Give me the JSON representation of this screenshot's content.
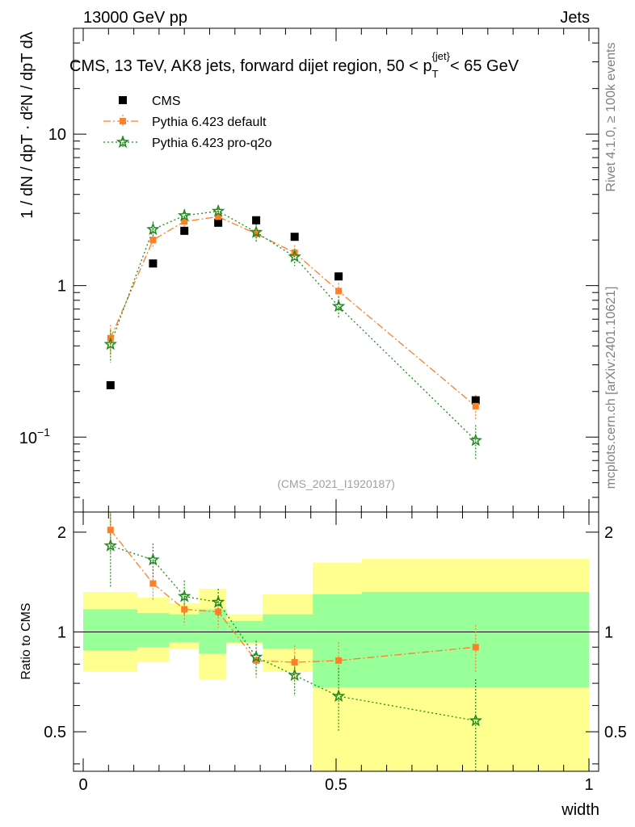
{
  "header": {
    "left": "13000 GeV pp",
    "right": "Jets"
  },
  "side_labels": {
    "rivet": "Rivet 4.1.0, ≥ 100k events",
    "mcplots": "mcplots.cern.ch [arXiv:2401.10621]"
  },
  "colors": {
    "cms": "#000000",
    "default": "#ff7f27",
    "proq2o": "#1a8c1a",
    "band_outer": "#ffff90",
    "band_inner": "#99ff99"
  },
  "chart_data": {
    "type": "scatter",
    "title_main": "CMS, 13 TeV, AK8 jets, forward dijet region, 50 <",
    "title_pt": "p",
    "title_pt_sub": "T",
    "title_pt_sup": "{jet}",
    "title_end": "< 65 GeV",
    "watermark": "(CMS_2021_I1920187)",
    "xlabel": "width",
    "ylabel_top": "1 / dN / dpT · d²N / dpT dλ",
    "ylabel_bottom": "Ratio to CMS",
    "xlim": [
      0,
      1
    ],
    "ylim_main": [
      0.032,
      50
    ],
    "ylim_ratio": [
      0.38,
      2.3
    ],
    "x_ticks": [
      "0",
      "0.5",
      "1"
    ],
    "y_ticks_main": [
      {
        "value": 1,
        "label": "1"
      },
      {
        "value": 10,
        "label": "10"
      }
    ],
    "y_tick_main_exp": {
      "value": 0.1,
      "base": "10",
      "exp": "−1"
    },
    "y_ticks_ratio": [
      {
        "value": 0.5,
        "label": "0.5"
      },
      {
        "value": 1,
        "label": "1"
      },
      {
        "value": 2,
        "label": "2"
      }
    ],
    "legend": [
      {
        "key": "cms",
        "label": "CMS"
      },
      {
        "key": "default",
        "label": "Pythia 6.423 default"
      },
      {
        "key": "proq2o",
        "label": "Pythia 6.423 pro-q2o"
      }
    ],
    "bin_edges": [
      0,
      0.107,
      0.17,
      0.229,
      0.283,
      0.355,
      0.454,
      0.551,
      1.0
    ],
    "series": [
      {
        "name": "CMS",
        "key": "cms",
        "x": [
          0.054,
          0.138,
          0.2,
          0.267,
          0.342,
          0.418,
          0.505,
          0.776
        ],
        "y": [
          0.22,
          1.4,
          2.3,
          2.6,
          2.7,
          2.1,
          1.15,
          0.175
        ],
        "yerr": [
          0,
          0,
          0,
          0,
          0,
          0,
          0,
          0
        ]
      },
      {
        "name": "Pythia 6.423 default",
        "key": "default",
        "x": [
          0.054,
          0.138,
          0.2,
          0.267,
          0.342,
          0.418,
          0.505,
          0.776
        ],
        "y": [
          0.45,
          2.0,
          2.65,
          2.85,
          2.2,
          1.65,
          0.92,
          0.16
        ],
        "yerr": [
          0.1,
          0.25,
          0.25,
          0.3,
          0.25,
          0.2,
          0.12,
          0.03
        ]
      },
      {
        "name": "Pythia 6.423 pro-q2o",
        "key": "proq2o",
        "x": [
          0.054,
          0.138,
          0.2,
          0.267,
          0.342,
          0.418,
          0.505,
          0.776
        ],
        "y": [
          0.41,
          2.35,
          2.9,
          3.1,
          2.25,
          1.55,
          0.73,
          0.095
        ],
        "yerr": [
          0.1,
          0.3,
          0.3,
          0.3,
          0.3,
          0.2,
          0.12,
          0.025
        ]
      }
    ],
    "ratio": {
      "default": {
        "y": [
          2.03,
          1.4,
          1.17,
          1.15,
          0.82,
          0.81,
          0.82,
          0.9
        ],
        "yerr": [
          0.3,
          0.15,
          0.12,
          0.12,
          0.1,
          0.1,
          0.11,
          0.15
        ]
      },
      "proq2o": {
        "y": [
          1.82,
          1.65,
          1.28,
          1.23,
          0.84,
          0.74,
          0.64,
          0.54
        ],
        "yerr": [
          0.45,
          0.2,
          0.15,
          0.12,
          0.1,
          0.1,
          0.14,
          0.18
        ]
      }
    },
    "bands": {
      "inner": [
        [
          0.88,
          1.17
        ],
        [
          0.9,
          1.14
        ],
        [
          0.93,
          1.13
        ],
        [
          0.86,
          1.17
        ],
        [
          0.93,
          1.08
        ],
        [
          0.89,
          1.13
        ],
        [
          0.68,
          1.3
        ],
        [
          0.68,
          1.32
        ]
      ],
      "outer": [
        [
          0.76,
          1.32
        ],
        [
          0.81,
          1.27
        ],
        [
          0.89,
          1.22
        ],
        [
          0.72,
          1.35
        ],
        [
          0.92,
          1.13
        ],
        [
          0.76,
          1.3
        ],
        [
          0.35,
          1.62
        ],
        [
          0.35,
          1.66
        ]
      ]
    }
  }
}
